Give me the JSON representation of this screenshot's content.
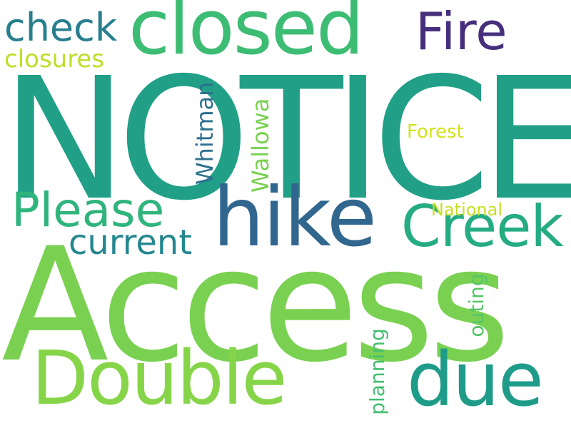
{
  "words": {
    "notice": {
      "text": "NOTICE",
      "color": "#21a087"
    },
    "access": {
      "text": "Access",
      "color": "#7ad151"
    },
    "closed": {
      "text": "closed",
      "color": "#3dbc74"
    },
    "hike": {
      "text": "hike",
      "color": "#31668e"
    },
    "double": {
      "text": "Double",
      "color": "#86d549"
    },
    "due": {
      "text": "due",
      "color": "#1e9c89"
    },
    "creek": {
      "text": "Creek",
      "color": "#25ac82"
    },
    "please": {
      "text": "Please",
      "color": "#2fb47c"
    },
    "fire": {
      "text": "Fire",
      "color": "#472f7d"
    },
    "check": {
      "text": "check",
      "color": "#277f8e"
    },
    "current": {
      "text": "current",
      "color": "#24878e"
    },
    "closures": {
      "text": "closures",
      "color": "#bddf26"
    },
    "whitman": {
      "text": "Whitman",
      "color": "#2e6f8e"
    },
    "wallowa": {
      "text": "Wallowa",
      "color": "#7ad151"
    },
    "forest": {
      "text": "Forest",
      "color": "#d2e21b"
    },
    "national": {
      "text": "National",
      "color": "#c8e020"
    },
    "outing": {
      "text": "outing",
      "color": "#54c568"
    },
    "planning": {
      "text": "planning",
      "color": "#44bf70"
    }
  }
}
